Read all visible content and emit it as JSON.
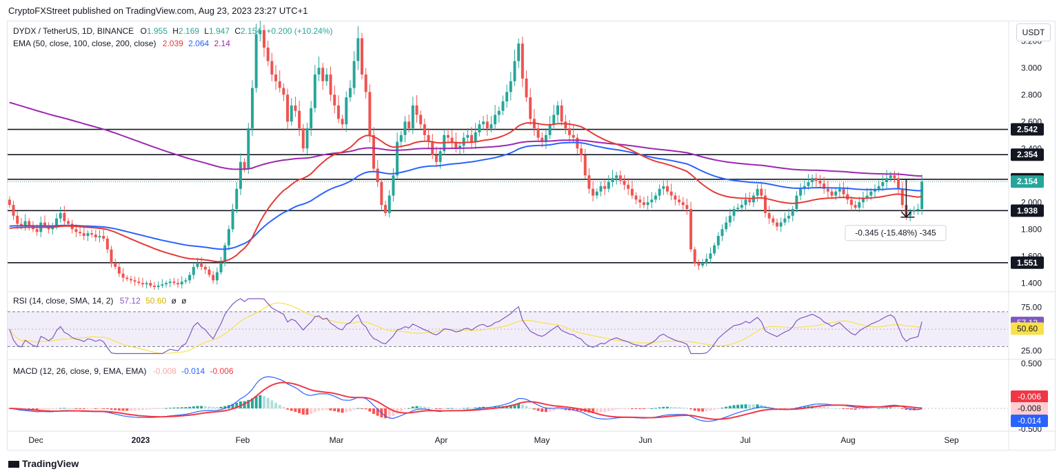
{
  "header": {
    "published": "CryptoFXStreet published on TradingView.com, Aug 23, 2023 23:27 UTC+1"
  },
  "legend": {
    "symbol": "DYDX / TetherUS, 1D, BINANCE",
    "o_label": "O",
    "o": "1.955",
    "h_label": "H",
    "h": "2.169",
    "l_label": "L",
    "l": "1.947",
    "c_label": "C",
    "c": "2.154",
    "change": "+0.200 (+10.24%)",
    "ema_label": "EMA (50, close, 100, close, 200, close)",
    "ema50": "2.039",
    "ema100": "2.064",
    "ema200": "2.14",
    "rsi_label": "RSI (14, close, SMA, 14, 2)",
    "rsi_value": "57.12",
    "rsi_sma": "50.60",
    "rsi_extra1": "ø",
    "rsi_extra2": "ø",
    "macd_label": "MACD (12, 26, close, 9, EMA, EMA)",
    "macd_hist": "-0.008",
    "macd_line": "-0.014",
    "macd_signal": "-0.006"
  },
  "currency_button": "USDT",
  "brand": "TradingView",
  "colors": {
    "up": "#26a69a",
    "down": "#ef5350",
    "ema50": "#e53935",
    "ema100": "#2962ff",
    "ema200": "#9c27b0",
    "rsi": "#7e57c2",
    "rsi_sma": "#f9e04b",
    "macd": "#2962ff",
    "signal": "#f23645"
  },
  "chart_data": {
    "type": "candlestick",
    "title": "DYDX / TetherUS, 1D, BINANCE",
    "price_axis_ticks": [
      "3.200",
      "3.000",
      "2.800",
      "2.600",
      "2.400",
      "2.000",
      "1.800",
      "1.600",
      "1.400"
    ],
    "ylim": [
      1.35,
      3.35
    ],
    "x_ticks": [
      "Dec",
      "2023",
      "Feb",
      "Mar",
      "Apr",
      "May",
      "Jun",
      "Jul",
      "Aug",
      "Sep"
    ],
    "horizontal_levels": [
      {
        "label": "2.542",
        "value": 2.542
      },
      {
        "label": "2.354",
        "value": 2.354
      },
      {
        "label": "2.171",
        "value": 2.171
      },
      {
        "label": "1.938",
        "value": 1.938
      },
      {
        "label": "1.551",
        "value": 1.551
      }
    ],
    "last_price_label": "2.154",
    "last_price": 2.154,
    "measure_annotation": "-0.345 (-15.48%) -345",
    "closes": [
      1.98,
      1.9,
      1.84,
      1.82,
      1.86,
      1.83,
      1.8,
      1.78,
      1.85,
      1.83,
      1.8,
      1.82,
      1.88,
      1.92,
      1.86,
      1.84,
      1.8,
      1.78,
      1.77,
      1.75,
      1.77,
      1.76,
      1.74,
      1.75,
      1.73,
      1.65,
      1.55,
      1.52,
      1.47,
      1.44,
      1.43,
      1.42,
      1.41,
      1.4,
      1.39,
      1.4,
      1.38,
      1.37,
      1.38,
      1.39,
      1.4,
      1.41,
      1.4,
      1.39,
      1.41,
      1.42,
      1.46,
      1.52,
      1.55,
      1.52,
      1.5,
      1.46,
      1.42,
      1.48,
      1.55,
      1.68,
      1.8,
      1.95,
      2.1,
      2.3,
      2.25,
      2.55,
      2.85,
      3.25,
      3.28,
      3.15,
      3.05,
      2.95,
      2.9,
      2.85,
      2.8,
      2.6,
      2.72,
      2.68,
      2.55,
      2.4,
      2.55,
      2.7,
      2.95,
      3.0,
      2.9,
      2.95,
      2.8,
      2.72,
      2.62,
      2.58,
      2.78,
      2.85,
      3.05,
      3.22,
      2.95,
      2.82,
      2.5,
      2.25,
      2.15,
      1.98,
      1.92,
      2.05,
      2.2,
      2.45,
      2.5,
      2.6,
      2.55,
      2.72,
      2.65,
      2.58,
      2.5,
      2.45,
      2.35,
      2.3,
      2.38,
      2.5,
      2.48,
      2.45,
      2.4,
      2.42,
      2.48,
      2.5,
      2.45,
      2.52,
      2.58,
      2.6,
      2.55,
      2.58,
      2.65,
      2.68,
      2.75,
      2.82,
      2.9,
      3.05,
      3.18,
      2.92,
      2.78,
      2.62,
      2.55,
      2.48,
      2.45,
      2.5,
      2.58,
      2.65,
      2.72,
      2.6,
      2.55,
      2.5,
      2.48,
      2.4,
      2.35,
      2.2,
      2.1,
      2.05,
      2.08,
      2.12,
      2.1,
      2.15,
      2.18,
      2.2,
      2.16,
      2.13,
      2.1,
      2.05,
      2.02,
      2.0,
      1.98,
      2.0,
      2.02,
      2.05,
      2.1,
      2.12,
      2.08,
      2.05,
      2.02,
      2.0,
      1.98,
      1.95,
      1.65,
      1.55,
      1.53,
      1.55,
      1.58,
      1.62,
      1.68,
      1.75,
      1.8,
      1.85,
      1.9,
      1.95,
      1.96,
      1.98,
      2.02,
      2.0,
      2.05,
      2.1,
      2.05,
      1.92,
      1.88,
      1.85,
      1.82,
      1.85,
      1.88,
      1.9,
      1.95,
      2.05,
      2.1,
      2.12,
      2.15,
      2.18,
      2.16,
      2.14,
      2.1,
      2.08,
      2.05,
      2.08,
      2.1,
      2.06,
      2.02,
      1.98,
      1.96,
      2.0,
      2.03,
      2.05,
      2.08,
      2.1,
      2.12,
      2.15,
      2.18,
      2.2,
      2.18,
      2.1,
      1.98,
      1.9,
      1.93,
      1.94,
      1.95,
      2.154
    ],
    "rsi_axis_ticks": [
      "75.00",
      "25.00"
    ],
    "rsi_current": 57.12,
    "rsi_sma_current": 50.6,
    "macd_axis_ticks": [
      "0.500",
      "-0.500"
    ],
    "macd_current": {
      "hist": -0.008,
      "macd": -0.014,
      "signal": -0.006
    }
  }
}
